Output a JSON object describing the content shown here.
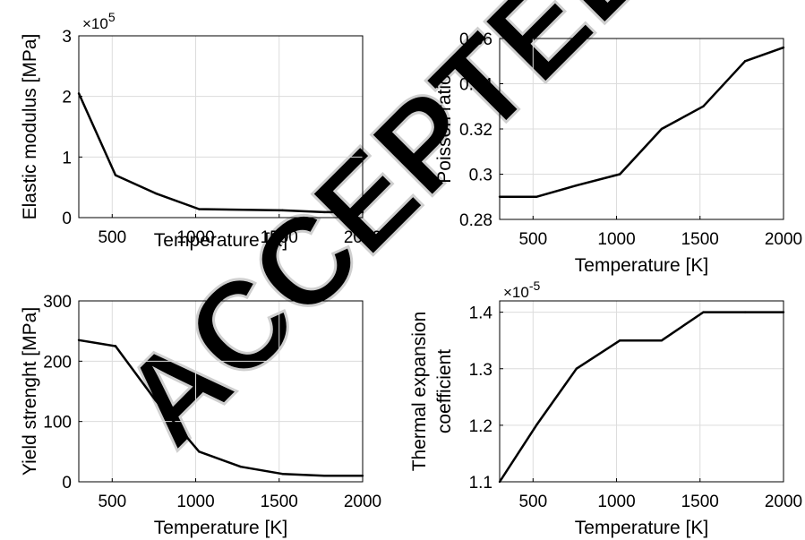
{
  "watermark": "ACCEPTED",
  "chart_data": [
    {
      "type": "line",
      "xlabel": "Temperature [K]",
      "ylabel": "Elastic modulus [MPa]",
      "y_multiplier": "×10",
      "y_multiplier_exp": "5",
      "xlim": [
        300,
        2000
      ],
      "ylim": [
        0,
        3
      ],
      "xticks": [
        500,
        1000,
        1500,
        2000
      ],
      "yticks": [
        0,
        1,
        2,
        3
      ],
      "xtick_labels": [
        "500",
        "1000",
        "1500",
        "2000"
      ],
      "ytick_labels": [
        "0",
        "1",
        "2",
        "3"
      ],
      "grid": true,
      "color": "#000000",
      "x": [
        300,
        520,
        760,
        1020,
        1520,
        1770,
        2000
      ],
      "y": [
        2.05,
        0.7,
        0.4,
        0.14,
        0.12,
        0.09,
        0.09
      ]
    },
    {
      "type": "line",
      "xlabel": "Temperature [K]",
      "ylabel": "Poisson ratio",
      "xlim": [
        300,
        2000
      ],
      "ylim": [
        0.28,
        0.36
      ],
      "xticks": [
        500,
        1000,
        1500,
        2000
      ],
      "yticks": [
        0.28,
        0.3,
        0.32,
        0.34,
        0.36
      ],
      "xtick_labels": [
        "500",
        "1000",
        "1500",
        "2000"
      ],
      "ytick_labels": [
        "0.28",
        "0.3",
        "0.32",
        "0.34",
        "0.36"
      ],
      "grid": true,
      "color": "#000000",
      "x": [
        300,
        520,
        760,
        1020,
        1270,
        1520,
        1770,
        2000
      ],
      "y": [
        0.29,
        0.29,
        0.295,
        0.3,
        0.32,
        0.33,
        0.35,
        0.356
      ]
    },
    {
      "type": "line",
      "xlabel": "Temperature [K]",
      "ylabel": "Yield strenght [MPa]",
      "xlim": [
        300,
        2000
      ],
      "ylim": [
        0,
        300
      ],
      "xticks": [
        500,
        1000,
        1500,
        2000
      ],
      "yticks": [
        0,
        100,
        200,
        300
      ],
      "xtick_labels": [
        "500",
        "1000",
        "1500",
        "2000"
      ],
      "ytick_labels": [
        "0",
        "100",
        "200",
        "300"
      ],
      "grid": true,
      "color": "#000000",
      "x": [
        300,
        520,
        760,
        1020,
        1270,
        1520,
        1770,
        2000
      ],
      "y": [
        235,
        225,
        135,
        50,
        25,
        13,
        10,
        10
      ]
    },
    {
      "type": "line",
      "xlabel": "Temperature [K]",
      "ylabel": "Thermal expansion",
      "ylabel2": "coefficient",
      "y_multiplier": "×10",
      "y_multiplier_exp": "-5",
      "xlim": [
        300,
        2000
      ],
      "ylim": [
        1.1,
        1.42
      ],
      "xticks": [
        500,
        1000,
        1500,
        2000
      ],
      "yticks": [
        1.1,
        1.2,
        1.3,
        1.4
      ],
      "xtick_labels": [
        "500",
        "1000",
        "1500",
        "2000"
      ],
      "ytick_labels": [
        "1.1",
        "1.2",
        "1.3",
        "1.4"
      ],
      "grid": true,
      "color": "#000000",
      "x": [
        300,
        520,
        760,
        1020,
        1270,
        1520,
        1770,
        2000
      ],
      "y": [
        1.1,
        1.2,
        1.3,
        1.35,
        1.35,
        1.4,
        1.4,
        1.4
      ]
    }
  ]
}
